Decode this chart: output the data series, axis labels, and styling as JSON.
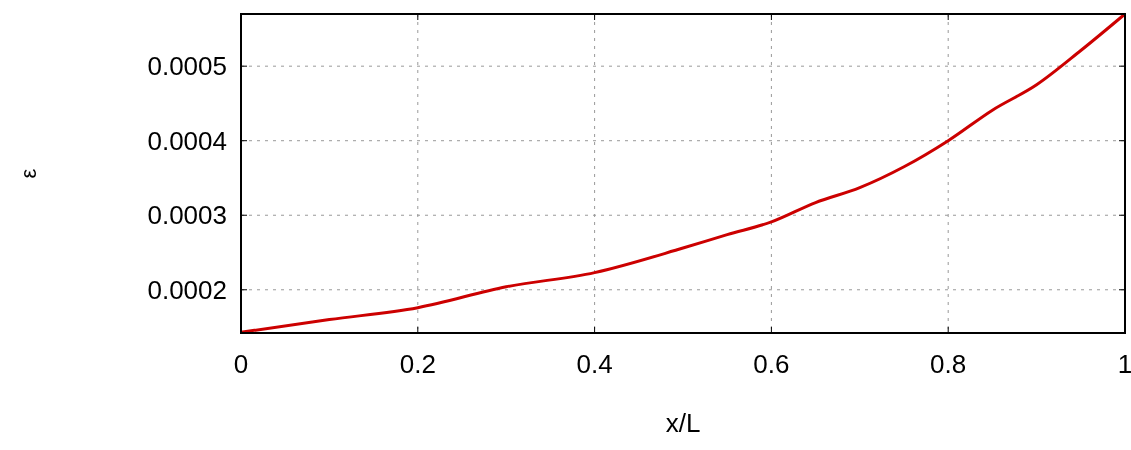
{
  "chart_data": {
    "type": "line",
    "xlabel": "x/L",
    "ylabel": "ε",
    "x": [
      0,
      0.1,
      0.2,
      0.3,
      0.4,
      0.5,
      0.55,
      0.6,
      0.65,
      0.7,
      0.75,
      0.8,
      0.85,
      0.9,
      0.95,
      1
    ],
    "series": [
      {
        "color": "#cc0000",
        "values": [
          0.000143,
          0.00016,
          0.000176,
          0.000204,
          0.000223,
          0.000256,
          0.000274,
          0.000291,
          0.000317,
          0.000337,
          0.000365,
          0.0004,
          0.000441,
          0.000475,
          0.000521,
          0.00057
        ]
      }
    ],
    "xlim": [
      0,
      1
    ],
    "ylim": [
      0.000142,
      0.00057
    ],
    "xticks": [
      0,
      0.2,
      0.4,
      0.6,
      0.8,
      1
    ],
    "yticks": [
      0.0002,
      0.0003,
      0.0004,
      0.0005
    ],
    "grid": true,
    "marker": "none",
    "line_style": "solid"
  }
}
